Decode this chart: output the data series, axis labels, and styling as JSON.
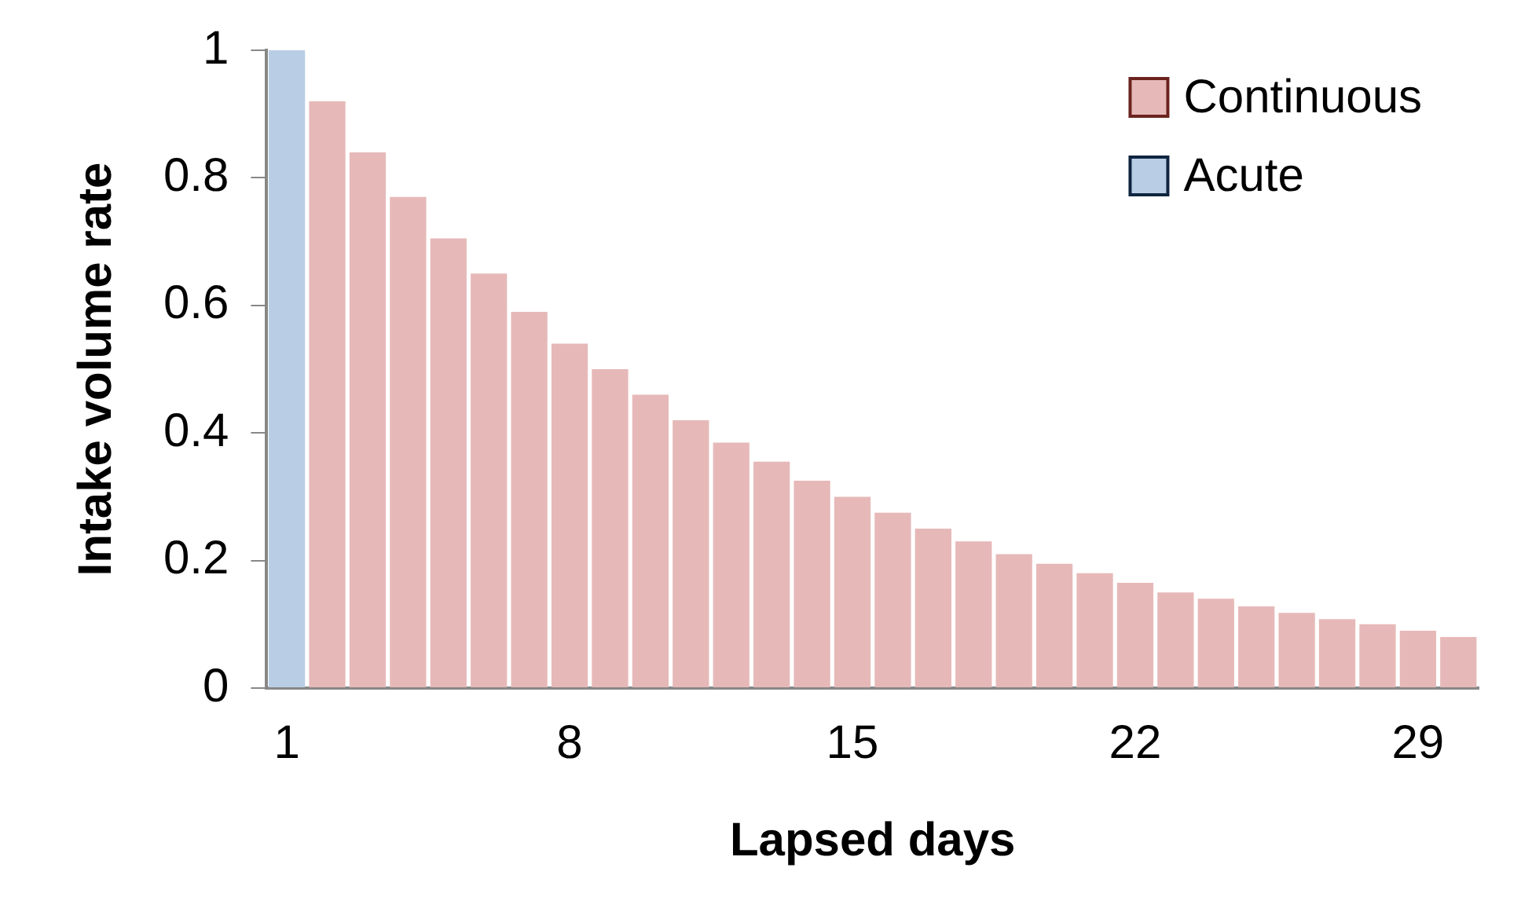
{
  "chart_data": {
    "type": "bar",
    "xlabel": "Lapsed days",
    "ylabel": "Intake volume rate",
    "categories": [
      "1",
      null,
      null,
      null,
      null,
      null,
      null,
      "8",
      null,
      null,
      null,
      null,
      null,
      null,
      "15",
      null,
      null,
      null,
      null,
      null,
      null,
      "22",
      null,
      null,
      null,
      null,
      null,
      null,
      "29",
      null
    ],
    "series": [
      {
        "name": "Continuous",
        "color": "#e6b9b8",
        "values": [
          null,
          0.92,
          0.84,
          0.77,
          0.705,
          0.65,
          0.59,
          0.54,
          0.5,
          0.46,
          0.42,
          0.385,
          0.355,
          0.325,
          0.3,
          0.275,
          0.25,
          0.23,
          0.21,
          0.195,
          0.18,
          0.165,
          0.15,
          0.14,
          0.128,
          0.118,
          0.108,
          0.1,
          0.09,
          0.08
        ]
      },
      {
        "name": "Acute",
        "color": "#b9cde5",
        "values": [
          1,
          null,
          null,
          null,
          null,
          null,
          null,
          null,
          null,
          null,
          null,
          null,
          null,
          null,
          null,
          null,
          null,
          null,
          null,
          null,
          null,
          null,
          null,
          null,
          null,
          null,
          null,
          null,
          null,
          null
        ]
      }
    ],
    "ylim": [
      0,
      1
    ],
    "yticks": [
      0,
      0.2,
      0.4,
      0.6,
      0.8,
      1
    ],
    "grid": false,
    "legend": "top right"
  }
}
